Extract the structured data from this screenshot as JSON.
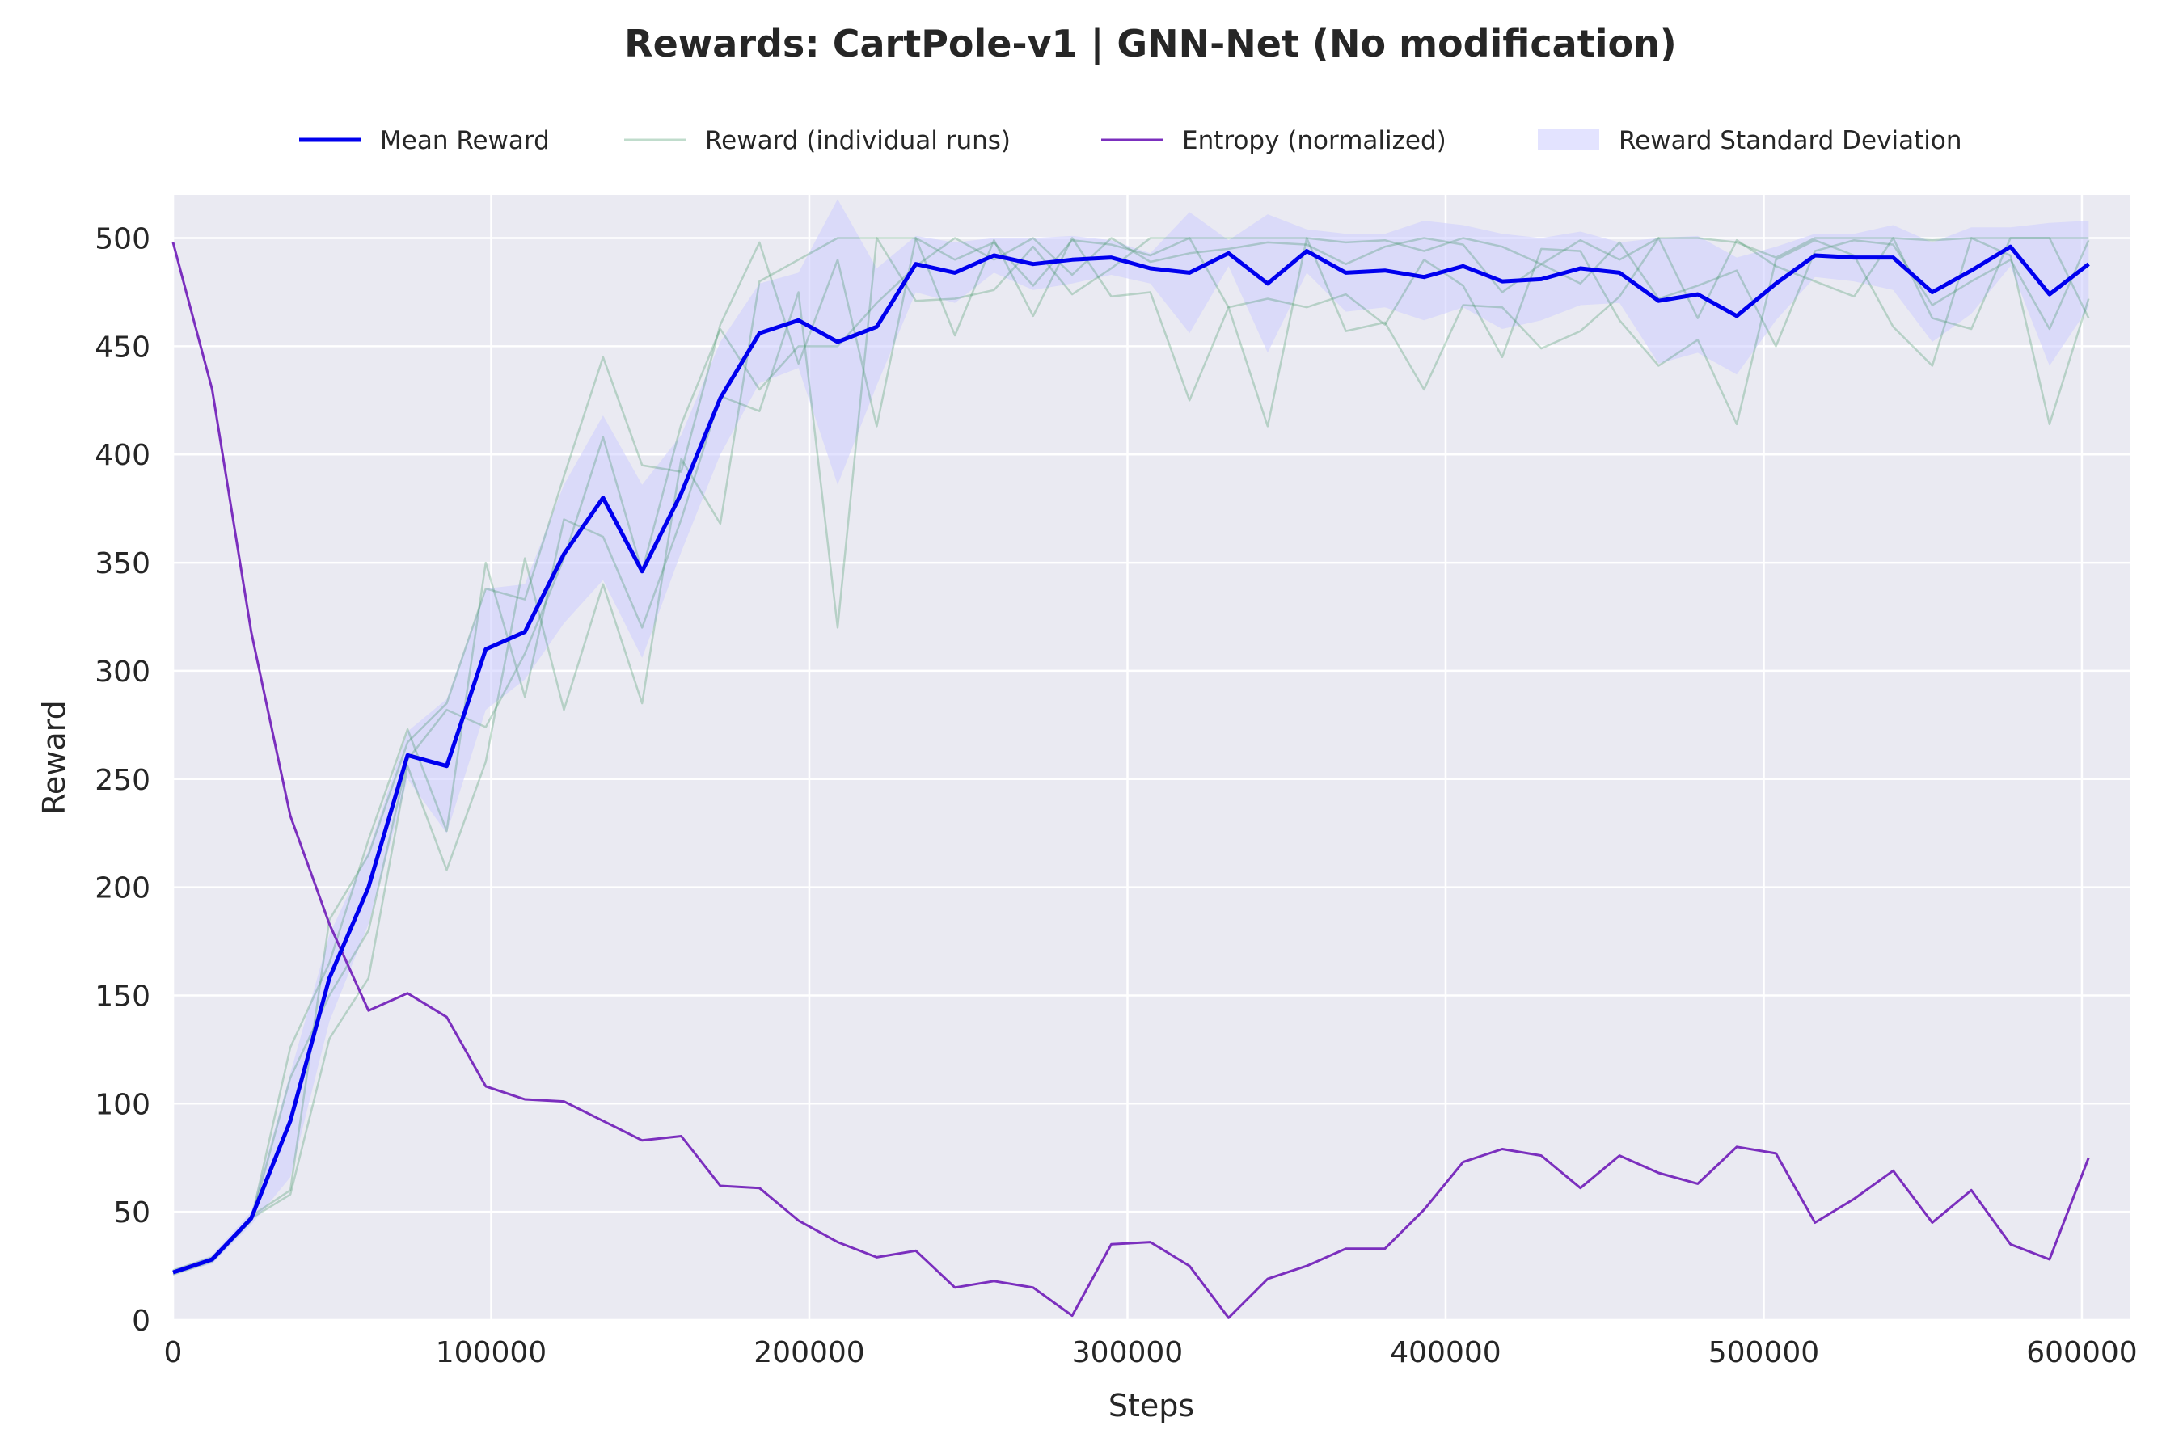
{
  "chart_data": {
    "type": "line",
    "title": "Rewards: CartPole-v1 | GNN-Net (No modification)",
    "xlabel": "Steps",
    "ylabel": "Reward",
    "xlim": [
      0,
      615000
    ],
    "ylim": [
      0,
      520
    ],
    "xticks": [
      0,
      100000,
      200000,
      300000,
      400000,
      500000,
      600000
    ],
    "xtick_labels": [
      "0",
      "100000",
      "200000",
      "300000",
      "400000",
      "500000",
      "600000"
    ],
    "yticks": [
      0,
      50,
      100,
      150,
      200,
      250,
      300,
      350,
      400,
      450,
      500
    ],
    "ytick_labels": [
      "0",
      "50",
      "100",
      "150",
      "200",
      "250",
      "300",
      "350",
      "400",
      "450",
      "500"
    ],
    "grid": true,
    "legend_position": "top-center",
    "legend": [
      {
        "label": "Mean Reward",
        "kind": "line",
        "color": "#0000ee"
      },
      {
        "label": "Reward (individual runs)",
        "kind": "line",
        "color": "#2e8b57"
      },
      {
        "label": "Entropy (normalized)",
        "kind": "line",
        "color": "#7b2fbe"
      },
      {
        "label": "Reward Standard Deviation",
        "kind": "area",
        "color": "#ccccff"
      }
    ],
    "x": [
      0,
      12288,
      24576,
      36864,
      49152,
      61440,
      73728,
      86016,
      98304,
      110592,
      122880,
      135168,
      147456,
      159744,
      172032,
      184320,
      196608,
      208896,
      221184,
      233472,
      245760,
      258048,
      270336,
      282624,
      294912,
      307200,
      319488,
      331776,
      344064,
      356352,
      368640,
      380928,
      393216,
      405504,
      417792,
      430080,
      442368,
      454656,
      466944,
      479232,
      491520,
      503808,
      516096,
      528384,
      540672,
      552960,
      565248,
      577536,
      589824,
      602112
    ],
    "series": [
      {
        "name": "Mean Reward",
        "color": "#0000ee",
        "values": [
          22,
          28,
          47,
          92,
          158,
          200,
          261,
          256,
          310,
          318,
          354,
          380,
          346,
          382,
          426,
          456,
          462,
          452,
          459,
          488,
          484,
          492,
          488,
          490,
          491,
          486,
          484,
          493,
          479,
          494,
          484,
          485,
          482,
          487,
          480,
          481,
          486,
          484,
          471,
          474,
          464,
          479,
          492,
          491,
          491,
          475,
          485,
          496,
          474,
          488
        ]
      },
      {
        "name": "Entropy (normalized)",
        "color": "#7b2fbe",
        "values": [
          498,
          430,
          318,
          233,
          183,
          143,
          151,
          140,
          108,
          102,
          101,
          92,
          83,
          85,
          62,
          61,
          46,
          36,
          29,
          32,
          15,
          18,
          15,
          2,
          35,
          36,
          25,
          1,
          19,
          25,
          33,
          33,
          51,
          73,
          79,
          76,
          61,
          76,
          68,
          63,
          80,
          77,
          45,
          56,
          69,
          45,
          60,
          35,
          28,
          75
        ]
      },
      {
        "name": "Reward Standard Deviation",
        "color": "#ccccff",
        "lower": [
          21,
          26,
          44,
          66,
          138,
          183,
          250,
          225,
          282,
          296,
          322,
          342,
          306,
          355,
          400,
          433,
          440,
          386,
          432,
          475,
          470,
          484,
          476,
          479,
          483,
          479,
          456,
          487,
          447,
          484,
          466,
          468,
          462,
          468,
          458,
          462,
          469,
          470,
          442,
          447,
          437,
          462,
          482,
          480,
          476,
          452,
          465,
          487,
          441,
          468
        ]
      },
      {
        "name": "Reward Standard Deviation",
        "color": "#ccccff",
        "upper": [
          23,
          30,
          50,
          114,
          178,
          217,
          272,
          287,
          338,
          340,
          386,
          418,
          386,
          409,
          452,
          479,
          484,
          518,
          486,
          501,
          498,
          500,
          500,
          501,
          499,
          493,
          512,
          499,
          511,
          504,
          502,
          502,
          508,
          506,
          502,
          500,
          503,
          498,
          500,
          501,
          491,
          496,
          502,
          502,
          506,
          498,
          505,
          505,
          507,
          508
        ]
      },
      {
        "name": "Reward (individual runs)",
        "color": "#2e8b57",
        "values": [
          21,
          27,
          46,
          126,
          165,
          222,
          273,
          226,
          350,
          288,
          370,
          362,
          320,
          370,
          427,
          420,
          475,
          320,
          500,
          471,
          472,
          476,
          496,
          474,
          486,
          500,
          500,
          500,
          500,
          500,
          498,
          499,
          494,
          500,
          496,
          488,
          499,
          490,
          500,
          500,
          498,
          491,
          500,
          500,
          500,
          499,
          500,
          500,
          500,
          500
        ]
      },
      {
        "values": [
          22,
          28,
          48,
          60,
          185,
          215,
          267,
          285,
          338,
          333,
          390,
          445,
          395,
          392,
          460,
          498,
          442,
          490,
          413,
          500,
          490,
          498,
          478,
          499,
          497,
          492,
          500,
          468,
          472,
          468,
          474,
          460,
          490,
          478,
          445,
          495,
          494,
          462,
          441,
          453,
          414,
          490,
          499,
          492,
          459,
          441,
          500,
          492,
          414,
          472
        ]
      },
      {
        "values": [
          23,
          29,
          47,
          58,
          130,
          158,
          256,
          208,
          258,
          352,
          282,
          340,
          285,
          398,
          368,
          480,
          490,
          500,
          500,
          500,
          455,
          499,
          464,
          500,
          473,
          475,
          425,
          468,
          413,
          500,
          457,
          461,
          430,
          469,
          468,
          449,
          457,
          473,
          500,
          463,
          499,
          487,
          480,
          473,
          500,
          463,
          458,
          500,
          500,
          463
        ]
      },
      {
        "values": [
          22,
          28,
          46,
          112,
          150,
          180,
          259,
          282,
          274,
          308,
          352,
          408,
          346,
          414,
          458,
          430,
          450,
          450,
          470,
          487,
          500,
          490,
          500,
          483,
          500,
          489,
          493,
          495,
          498,
          497,
          488,
          496,
          500,
          497,
          475,
          488,
          479,
          498,
          472,
          478,
          485,
          450,
          494,
          499,
          497,
          469,
          480,
          490,
          458,
          499
        ]
      }
    ]
  }
}
